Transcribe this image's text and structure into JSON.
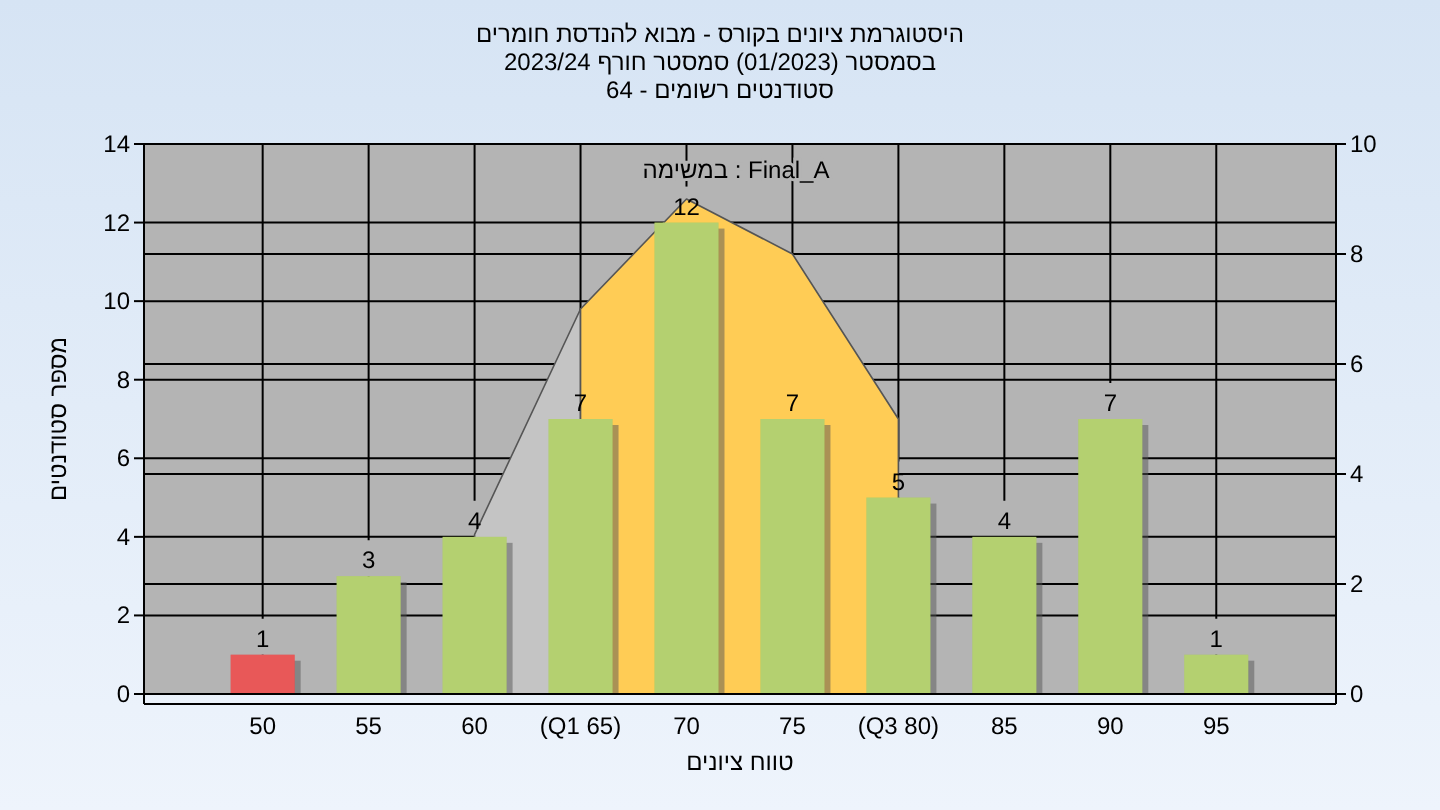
{
  "chart_data": {
    "type": "bar",
    "title": "היסטוגרמת ציונים בקורס - מבוא להנדסת חומרים",
    "subtitle": "בסמסטר (01/2023) סמסטר חורף 2023/24",
    "annotations": [
      "סטודנטים רשומים - 64",
      "במשימה : Final_A"
    ],
    "xlabel": "טווח ציונים",
    "ylabel": "מספר סטודנטים",
    "categories": [
      "50",
      "55",
      "60",
      "(Q1 65)",
      "70",
      "75",
      "(Q3 80)",
      "85",
      "90",
      "95"
    ],
    "series": [
      {
        "type": "area",
        "axis": "y2",
        "color": "#c4c4c4",
        "values": [
          null,
          null,
          2.9,
          7,
          null,
          null,
          null,
          null,
          null,
          null
        ]
      },
      {
        "type": "area",
        "axis": "y2",
        "color": "#ffcc55",
        "values": [
          null,
          null,
          null,
          7,
          9,
          8,
          5,
          null,
          null,
          null
        ]
      },
      {
        "value_labels": [
          "1",
          "3",
          "4",
          "7",
          "12",
          "7",
          "5",
          "4",
          "7",
          "1"
        ],
        "colors": [
          "#e02020",
          "#9bc040",
          "#9bc040",
          "#9bc040",
          "#9bc040",
          "#9bc040",
          "#9bc040",
          "#9bc040",
          "#9bc040",
          "#9bc040"
        ],
        "values": [
          1,
          3,
          4,
          7,
          12,
          7,
          5,
          4,
          7,
          1
        ]
      }
    ],
    "ylim": [
      0,
      14
    ],
    "yticks": [
      0,
      2,
      4,
      6,
      8,
      10,
      12,
      14
    ],
    "y2lim": [
      0,
      10
    ],
    "y2ticks": [
      0,
      2,
      4,
      6,
      8,
      10
    ],
    "grid": true
  }
}
